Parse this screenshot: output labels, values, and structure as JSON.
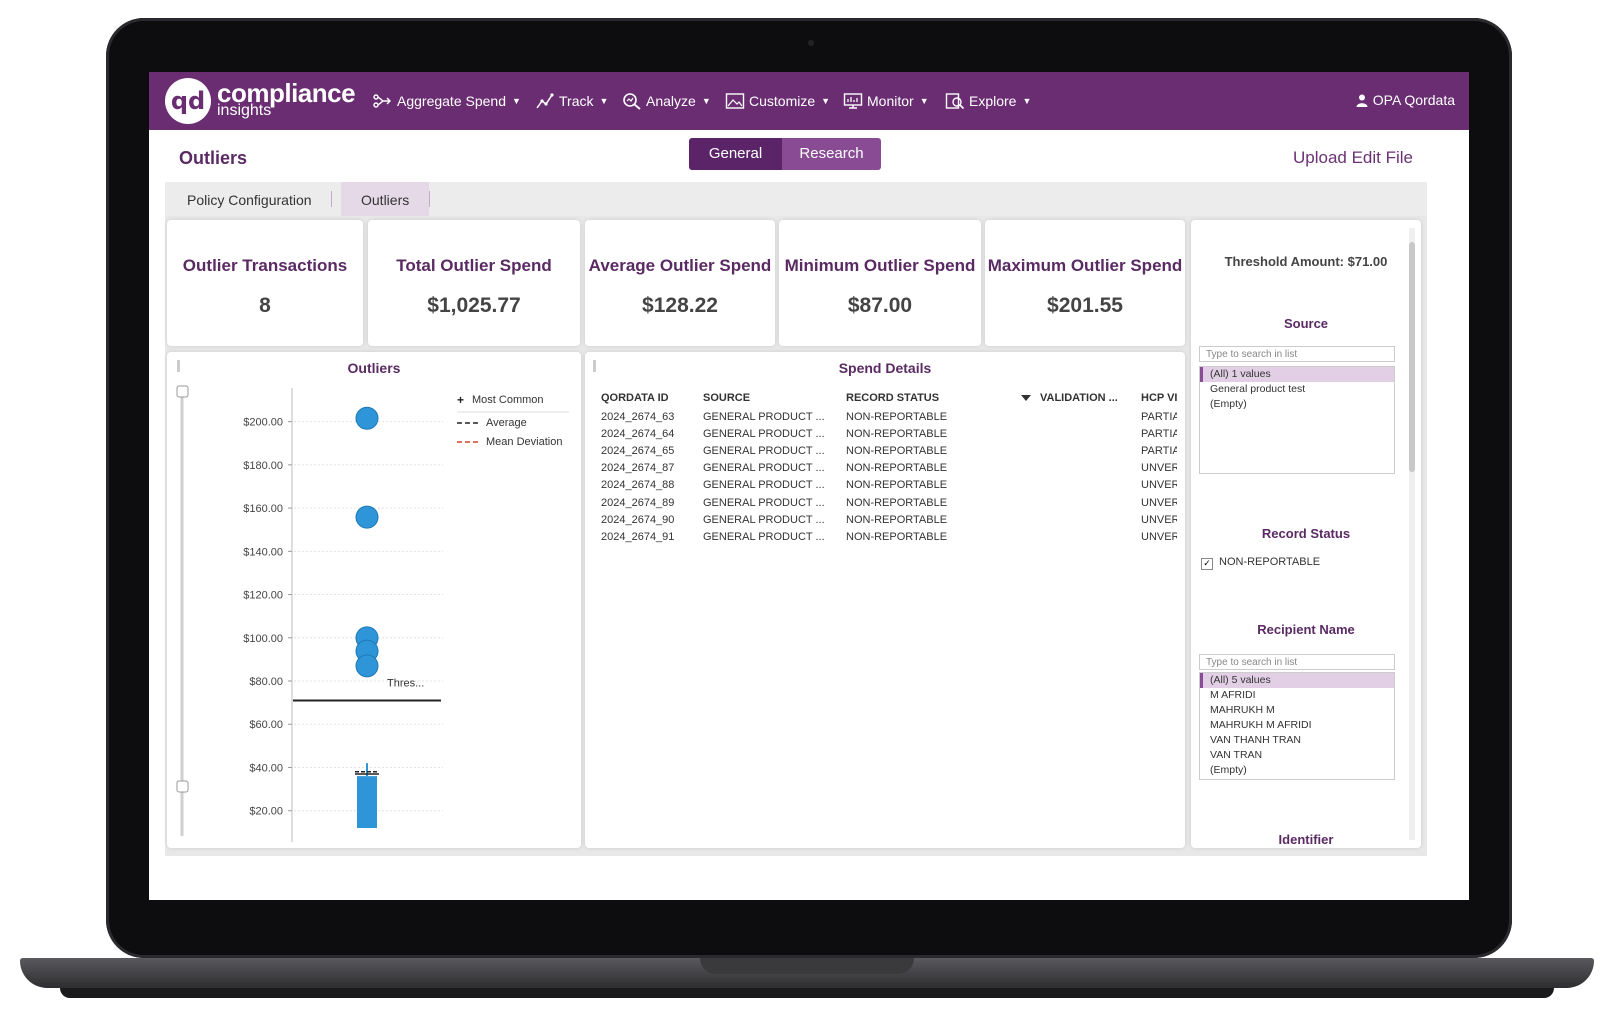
{
  "app": {
    "logo_mark": "qd",
    "logo_word1": "compliance",
    "logo_word2": "insights"
  },
  "nav": {
    "items": [
      {
        "label": "Aggregate Spend",
        "icon": "flow-icon"
      },
      {
        "label": "Track",
        "icon": "trend-icon"
      },
      {
        "label": "Analyze",
        "icon": "magnify-icon"
      },
      {
        "label": "Customize",
        "icon": "image-icon"
      },
      {
        "label": "Monitor",
        "icon": "monitor-icon"
      },
      {
        "label": "Explore",
        "icon": "explore-icon"
      }
    ],
    "user": "OPA Qordata"
  },
  "header": {
    "title": "Outliers",
    "toggle": [
      "General",
      "Research"
    ],
    "upload": "Upload Edit File"
  },
  "tabs": [
    "Policy Configuration",
    "Outliers"
  ],
  "kpis": [
    {
      "label": "Outlier Transactions",
      "value": "8"
    },
    {
      "label": "Total Outlier Spend",
      "value": "$1,025.77"
    },
    {
      "label": "Average Outlier Spend",
      "value": "$128.22"
    },
    {
      "label": "Minimum Outlier Spend",
      "value": "$87.00"
    },
    {
      "label": "Maximum Outlier Spend",
      "value": "$201.55"
    }
  ],
  "outliers_panel": {
    "title": "Outliers",
    "legend": [
      "Most Common",
      "Average",
      "Mean Deviation"
    ],
    "threshold_label": "Thres..."
  },
  "chart_data": {
    "type": "scatter",
    "yticks": [
      "$20.00",
      "$40.00",
      "$60.00",
      "$80.00",
      "$100.00",
      "$120.00",
      "$140.00",
      "$160.00",
      "$180.00",
      "$200.00"
    ],
    "ylim": [
      12,
      210
    ],
    "points": [
      201.55,
      155.8,
      99.94,
      93.8,
      87.0
    ],
    "threshold": 71.0,
    "box": {
      "low": 12,
      "high": 36,
      "whisker_top": 42
    },
    "most_common": 37,
    "average": 38,
    "colors": {
      "points": "#2e96d8",
      "box": "#2e96d8",
      "threshold": "#222222",
      "average": "#222222",
      "mean_deviation": "#d9442c"
    }
  },
  "spend_details": {
    "title": "Spend Details",
    "columns": [
      "QORDATA ID",
      "SOURCE",
      "RECORD STATUS",
      "VALIDATION ...",
      "HCP VI"
    ],
    "rows": [
      [
        "2024_2674_63",
        "GENERAL PRODUCT ...",
        "NON-REPORTABLE",
        "",
        "PARTIA"
      ],
      [
        "2024_2674_64",
        "GENERAL PRODUCT ...",
        "NON-REPORTABLE",
        "",
        "PARTIA"
      ],
      [
        "2024_2674_65",
        "GENERAL PRODUCT ...",
        "NON-REPORTABLE",
        "",
        "PARTIA"
      ],
      [
        "2024_2674_87",
        "GENERAL PRODUCT ...",
        "NON-REPORTABLE",
        "",
        "UNVER"
      ],
      [
        "2024_2674_88",
        "GENERAL PRODUCT ...",
        "NON-REPORTABLE",
        "",
        "UNVER"
      ],
      [
        "2024_2674_89",
        "GENERAL PRODUCT ...",
        "NON-REPORTABLE",
        "",
        "UNVER"
      ],
      [
        "2024_2674_90",
        "GENERAL PRODUCT ...",
        "NON-REPORTABLE",
        "",
        "UNVER"
      ],
      [
        "2024_2674_91",
        "GENERAL PRODUCT ...",
        "NON-REPORTABLE",
        "",
        "UNVER"
      ]
    ]
  },
  "filters": {
    "threshold": "Threshold Amount:  $71.00",
    "source": {
      "title": "Source",
      "placeholder": "Type to search in list",
      "items": [
        "(All) 1 values",
        "General product test",
        "(Empty)"
      ]
    },
    "record_status": {
      "title": "Record Status",
      "items": [
        "NON-REPORTABLE"
      ]
    },
    "recipient": {
      "title": "Recipient Name",
      "placeholder": "Type to search in list",
      "items": [
        "(All) 5 values",
        "M AFRIDI",
        "MAHRUKH M",
        "MAHRUKH M AFRIDI",
        "VAN THANH TRAN",
        "VAN TRAN",
        "(Empty)"
      ]
    },
    "identifier": {
      "title": "Identifier"
    }
  }
}
